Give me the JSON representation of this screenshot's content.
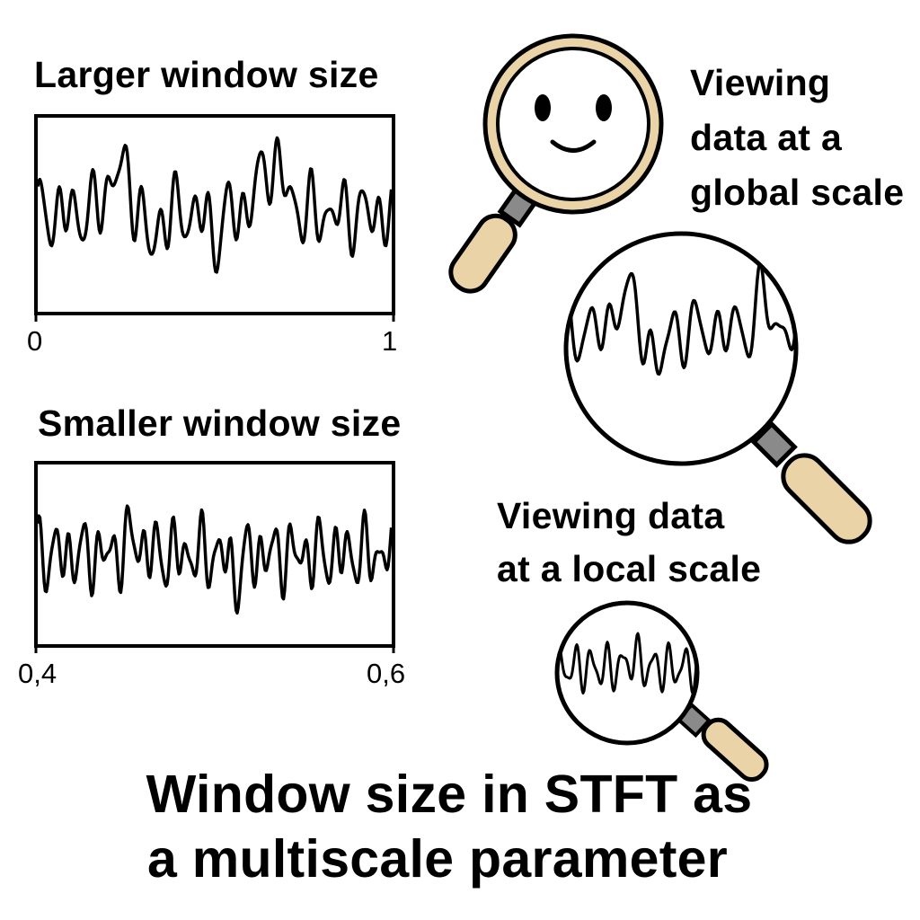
{
  "panels": {
    "large": {
      "heading": "Larger window size",
      "axis_start": "0",
      "axis_end": "1"
    },
    "small": {
      "heading": "Smaller window size",
      "axis_start": "0,4",
      "axis_end": "0,6"
    }
  },
  "labels": {
    "global": [
      "Viewing",
      "data at a",
      "global scale"
    ],
    "local": [
      "Viewing data",
      "at a local scale"
    ]
  },
  "footer": {
    "line1": "Window size in STFT as",
    "line2": "a multiscale parameter"
  },
  "colors": {
    "handle": "#ebd3a8",
    "ring": "#ebd3a8",
    "neck": "#8a8a8a",
    "ink": "#000000"
  },
  "icons": {
    "magnifier_global": "smiley-face-magnifier-icon",
    "magnifier_local_large": "waveform-magnifier-icon",
    "magnifier_local_small": "waveform-magnifier-small-icon"
  }
}
